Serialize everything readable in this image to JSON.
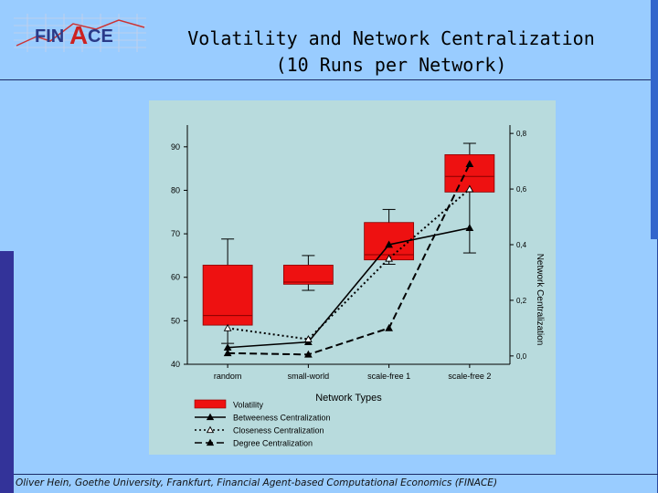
{
  "header": {
    "logo_text_1": "FIN",
    "logo_text_2": "A",
    "logo_text_3": "CE",
    "title_line1": "Volatility and Network Centralization",
    "title_line2": "(10 Runs per Network)"
  },
  "footer": {
    "text": "Oliver Hein, Goethe University, Frankfurt, Financial Agent-based Computational Economics (FINACE)"
  },
  "colors": {
    "background": "#99ccff",
    "plot_bg": "#b8dbdd",
    "box_fill": "#ee1111",
    "box_edge": "#880000",
    "line": "#000000"
  },
  "chart_data": {
    "type": "box",
    "xlabel": "Network Types",
    "ylabel_right": "Network Centralization",
    "categories": [
      "random",
      "small-world",
      "scale-free 1",
      "scale-free 2"
    ],
    "ylim_left": [
      40,
      95
    ],
    "yticks_left": [
      40,
      50,
      60,
      70,
      80,
      90
    ],
    "ylim_right": [
      -0.03,
      0.83
    ],
    "yticks_right": [
      0.0,
      0.2,
      0.4,
      0.6,
      0.8
    ],
    "yticklabels_right": [
      "0,0",
      "0,2",
      "0,4",
      "0,6",
      "0,8"
    ],
    "boxes": [
      {
        "category": "random",
        "q1": 49,
        "median": 51.2,
        "q3": 62.8,
        "whisker_low": 44.8,
        "whisker_high": 68.8
      },
      {
        "category": "small-world",
        "q1": 58.4,
        "median": 58.9,
        "q3": 62.8,
        "whisker_low": 57.0,
        "whisker_high": 65.0
      },
      {
        "category": "scale-free 1",
        "q1": 64.0,
        "median": 65.2,
        "q3": 72.6,
        "whisker_low": 63.0,
        "whisker_high": 75.6
      },
      {
        "category": "scale-free 2",
        "q1": 79.6,
        "median": 83.2,
        "q3": 88.2,
        "whisker_low": 65.6,
        "whisker_high": 90.8
      }
    ],
    "series": [
      {
        "name": "Volatility",
        "kind": "box"
      },
      {
        "name": "Betweeness Centralization",
        "kind": "line",
        "style": "solid",
        "marker": "filled-triangle",
        "values": [
          0.03,
          0.05,
          0.4,
          0.46
        ]
      },
      {
        "name": "Closeness Centralization",
        "kind": "line",
        "style": "dotted",
        "marker": "open-triangle",
        "values": [
          0.1,
          0.06,
          0.35,
          0.6
        ]
      },
      {
        "name": "Degree Centralization",
        "kind": "line",
        "style": "dashed",
        "marker": "filled-triangle",
        "values": [
          0.01,
          0.005,
          0.1,
          0.69
        ]
      }
    ],
    "legend_position": "bottom"
  }
}
